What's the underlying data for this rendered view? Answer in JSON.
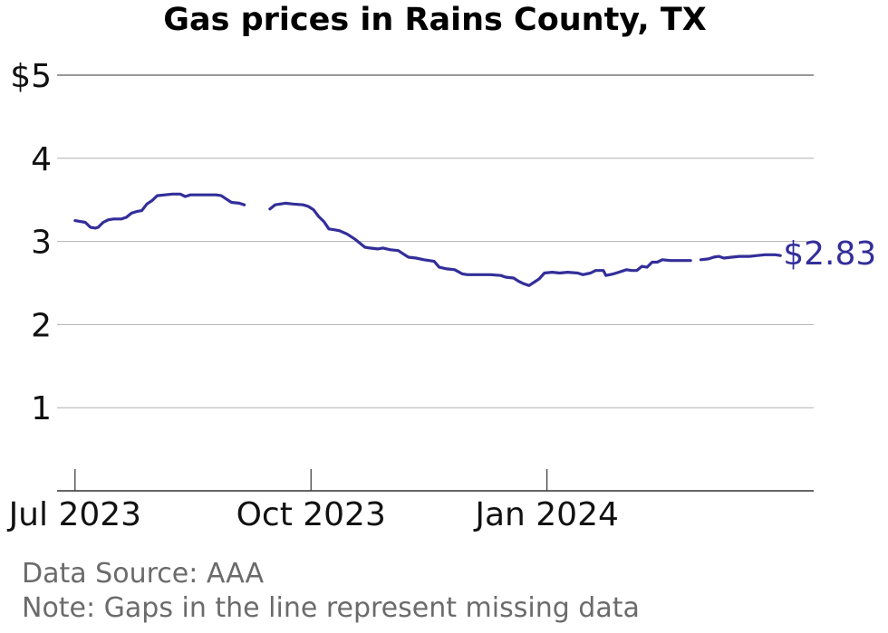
{
  "chart_data": {
    "type": "line",
    "title": "Gas prices in Rains County, TX",
    "xlabel": "",
    "ylabel": "",
    "ylim": [
      0,
      5
    ],
    "y_ticks": [
      {
        "value": 1,
        "label": "1"
      },
      {
        "value": 2,
        "label": "2"
      },
      {
        "value": 3,
        "label": "3"
      },
      {
        "value": 4,
        "label": "4"
      },
      {
        "value": 5,
        "label": "$5"
      }
    ],
    "x_range": [
      "2023-06-24",
      "2024-04-14"
    ],
    "x_ticks": [
      {
        "date": "2023-07-01",
        "label": "Jul 2023"
      },
      {
        "date": "2023-10-01",
        "label": "Oct 2023"
      },
      {
        "date": "2024-01-01",
        "label": "Jan 2024"
      }
    ],
    "grid": "horizontal",
    "line_color": "#332e99",
    "end_label": "$2.83",
    "series": [
      {
        "segments": [
          [
            [
              "2023-07-01",
              3.25
            ],
            [
              "2023-07-03",
              3.24
            ],
            [
              "2023-07-05",
              3.23
            ],
            [
              "2023-07-07",
              3.17
            ],
            [
              "2023-07-09",
              3.16
            ],
            [
              "2023-07-10",
              3.17
            ],
            [
              "2023-07-12",
              3.23
            ],
            [
              "2023-07-14",
              3.26
            ],
            [
              "2023-07-16",
              3.27
            ],
            [
              "2023-07-19",
              3.27
            ],
            [
              "2023-07-21",
              3.29
            ],
            [
              "2023-07-23",
              3.34
            ],
            [
              "2023-07-25",
              3.36
            ],
            [
              "2023-07-27",
              3.37
            ],
            [
              "2023-07-29",
              3.45
            ],
            [
              "2023-07-31",
              3.49
            ],
            [
              "2023-08-02",
              3.55
            ],
            [
              "2023-08-05",
              3.56
            ],
            [
              "2023-08-08",
              3.57
            ],
            [
              "2023-08-11",
              3.57
            ],
            [
              "2023-08-13",
              3.54
            ],
            [
              "2023-08-15",
              3.56
            ],
            [
              "2023-08-20",
              3.56
            ],
            [
              "2023-08-25",
              3.56
            ],
            [
              "2023-08-27",
              3.55
            ],
            [
              "2023-08-29",
              3.51
            ],
            [
              "2023-08-31",
              3.47
            ],
            [
              "2023-09-03",
              3.46
            ],
            [
              "2023-09-05",
              3.44
            ]
          ],
          [
            [
              "2023-09-15",
              3.39
            ],
            [
              "2023-09-17",
              3.44
            ],
            [
              "2023-09-21",
              3.46
            ],
            [
              "2023-09-24",
              3.45
            ],
            [
              "2023-09-28",
              3.44
            ],
            [
              "2023-09-30",
              3.42
            ],
            [
              "2023-10-02",
              3.38
            ],
            [
              "2023-10-04",
              3.3
            ],
            [
              "2023-10-06",
              3.24
            ],
            [
              "2023-10-08",
              3.15
            ],
            [
              "2023-10-10",
              3.14
            ],
            [
              "2023-10-12",
              3.13
            ],
            [
              "2023-10-15",
              3.09
            ],
            [
              "2023-10-18",
              3.03
            ],
            [
              "2023-10-20",
              2.98
            ],
            [
              "2023-10-22",
              2.93
            ],
            [
              "2023-10-24",
              2.92
            ],
            [
              "2023-10-27",
              2.91
            ],
            [
              "2023-10-29",
              2.92
            ],
            [
              "2023-11-01",
              2.9
            ],
            [
              "2023-11-04",
              2.89
            ],
            [
              "2023-11-06",
              2.85
            ],
            [
              "2023-11-08",
              2.81
            ],
            [
              "2023-11-11",
              2.8
            ],
            [
              "2023-11-14",
              2.78
            ],
            [
              "2023-11-18",
              2.76
            ],
            [
              "2023-11-20",
              2.69
            ],
            [
              "2023-11-23",
              2.67
            ],
            [
              "2023-11-26",
              2.66
            ],
            [
              "2023-11-29",
              2.61
            ],
            [
              "2023-12-01",
              2.6
            ],
            [
              "2023-12-05",
              2.6
            ],
            [
              "2023-12-10",
              2.6
            ],
            [
              "2023-12-14",
              2.59
            ],
            [
              "2023-12-16",
              2.57
            ],
            [
              "2023-12-19",
              2.56
            ],
            [
              "2023-12-21",
              2.52
            ],
            [
              "2023-12-23",
              2.49
            ],
            [
              "2023-12-25",
              2.47
            ],
            [
              "2023-12-27",
              2.51
            ],
            [
              "2023-12-29",
              2.55
            ],
            [
              "2023-12-31",
              2.62
            ],
            [
              "2024-01-03",
              2.63
            ],
            [
              "2024-01-06",
              2.62
            ],
            [
              "2024-01-09",
              2.63
            ],
            [
              "2024-01-13",
              2.62
            ],
            [
              "2024-01-15",
              2.6
            ],
            [
              "2024-01-18",
              2.62
            ],
            [
              "2024-01-20",
              2.65
            ],
            [
              "2024-01-23",
              2.65
            ],
            [
              "2024-01-24",
              2.59
            ],
            [
              "2024-01-27",
              2.61
            ],
            [
              "2024-01-29",
              2.63
            ],
            [
              "2024-02-01",
              2.66
            ],
            [
              "2024-02-03",
              2.65
            ],
            [
              "2024-02-05",
              2.65
            ],
            [
              "2024-02-07",
              2.7
            ],
            [
              "2024-02-09",
              2.69
            ],
            [
              "2024-02-11",
              2.75
            ],
            [
              "2024-02-13",
              2.75
            ],
            [
              "2024-02-15",
              2.78
            ],
            [
              "2024-02-18",
              2.77
            ],
            [
              "2024-02-22",
              2.77
            ],
            [
              "2024-02-26",
              2.77
            ]
          ],
          [
            [
              "2024-03-01",
              2.78
            ],
            [
              "2024-03-04",
              2.79
            ],
            [
              "2024-03-06",
              2.81
            ],
            [
              "2024-03-08",
              2.82
            ],
            [
              "2024-03-10",
              2.8
            ],
            [
              "2024-03-13",
              2.81
            ],
            [
              "2024-03-16",
              2.82
            ],
            [
              "2024-03-20",
              2.82
            ],
            [
              "2024-03-23",
              2.83
            ],
            [
              "2024-03-26",
              2.84
            ],
            [
              "2024-03-30",
              2.84
            ],
            [
              "2024-04-01",
              2.83
            ]
          ]
        ]
      }
    ]
  },
  "footer": {
    "source": "Data Source: AAA",
    "note": "Note: Gaps in the line represent missing data"
  }
}
